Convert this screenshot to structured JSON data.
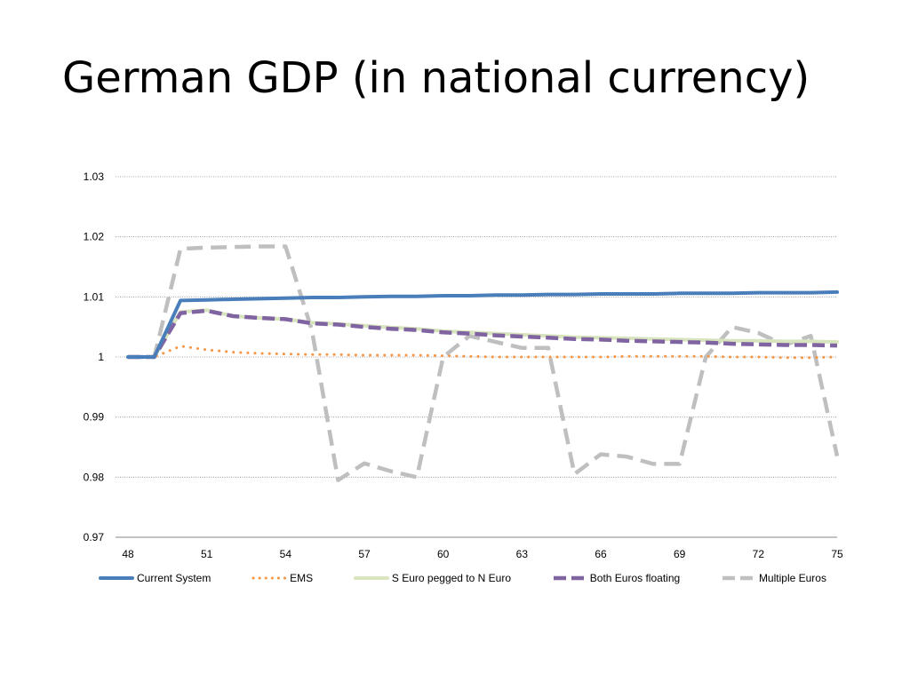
{
  "slide": {
    "title": "German GDP (in national currency)"
  },
  "chart_data": {
    "type": "line",
    "title": "",
    "xlabel": "",
    "ylabel": "",
    "x": [
      48,
      49,
      50,
      51,
      52,
      53,
      54,
      55,
      56,
      57,
      58,
      59,
      60,
      61,
      62,
      63,
      64,
      65,
      66,
      67,
      68,
      69,
      70,
      71,
      72,
      73,
      74,
      75
    ],
    "x_ticks": [
      "48",
      "51",
      "54",
      "57",
      "60",
      "63",
      "66",
      "69",
      "72",
      "75"
    ],
    "y_ticks": [
      "0.97",
      "0.98",
      "0.99",
      "1",
      "1.01",
      "1.02",
      "1.03"
    ],
    "ylim": [
      0.97,
      1.03
    ],
    "grid": "horizontal dotted",
    "legend_position": "bottom",
    "series": [
      {
        "name": "Current System",
        "color": "#4A7EBB",
        "style": "solid",
        "values": [
          1,
          1,
          1.0094,
          1.0095,
          1.0096,
          1.0097,
          1.0098,
          1.0099,
          1.0099,
          1.01,
          1.0101,
          1.0101,
          1.0102,
          1.0102,
          1.0103,
          1.0103,
          1.0104,
          1.0104,
          1.0105,
          1.0105,
          1.0105,
          1.0106,
          1.0106,
          1.0106,
          1.0107,
          1.0107,
          1.0107,
          1.0108
        ]
      },
      {
        "name": "EMS",
        "color": "#F79646",
        "style": "dotted",
        "values": [
          1,
          1,
          1.0018,
          1.0012,
          1.0008,
          1.0006,
          1.0005,
          1.0004,
          1.0004,
          1.0003,
          1.0003,
          1.0003,
          1.0002,
          1.0001,
          1.0,
          1.0,
          1.0,
          1.0,
          1.0,
          1.0001,
          1.0001,
          1.0001,
          1.0001,
          1.0,
          1.0,
          0.9999,
          0.9999,
          1.0
        ]
      },
      {
        "name": "S Euro pegged to N Euro",
        "color": "#D7E4BD",
        "style": "solid",
        "values": [
          1,
          1,
          1.0075,
          1.0078,
          1.0068,
          1.0065,
          1.0063,
          1.0057,
          1.0055,
          1.0052,
          1.0049,
          1.0047,
          1.0043,
          1.0041,
          1.0039,
          1.0037,
          1.0035,
          1.0033,
          1.0032,
          1.0031,
          1.003,
          1.0029,
          1.0028,
          1.0027,
          1.0027,
          1.0026,
          1.0026,
          1.0025
        ]
      },
      {
        "name": "Both Euros floating",
        "color": "#8064A2",
        "style": "dashed",
        "values": [
          1,
          1,
          1.0073,
          1.0077,
          1.0068,
          1.0065,
          1.0063,
          1.0056,
          1.0054,
          1.005,
          1.0047,
          1.0045,
          1.0041,
          1.0039,
          1.0036,
          1.0034,
          1.0032,
          1.003,
          1.0029,
          1.0027,
          1.0026,
          1.0025,
          1.0024,
          1.0022,
          1.0021,
          1.002,
          1.002,
          1.0019
        ]
      },
      {
        "name": "Multiple Euros",
        "color": "#BFBFBF",
        "style": "dashed",
        "values": [
          1,
          1,
          1.018,
          1.0182,
          1.0183,
          1.0184,
          1.0184,
          1.0045,
          0.9795,
          0.9823,
          0.981,
          0.98,
          1.0,
          1.0035,
          1.0025,
          1.0015,
          1.0015,
          0.9805,
          0.9838,
          0.9834,
          0.9822,
          0.9822,
          1.0,
          1.005,
          1.004,
          1.002,
          1.0035,
          0.9835
        ]
      }
    ]
  }
}
